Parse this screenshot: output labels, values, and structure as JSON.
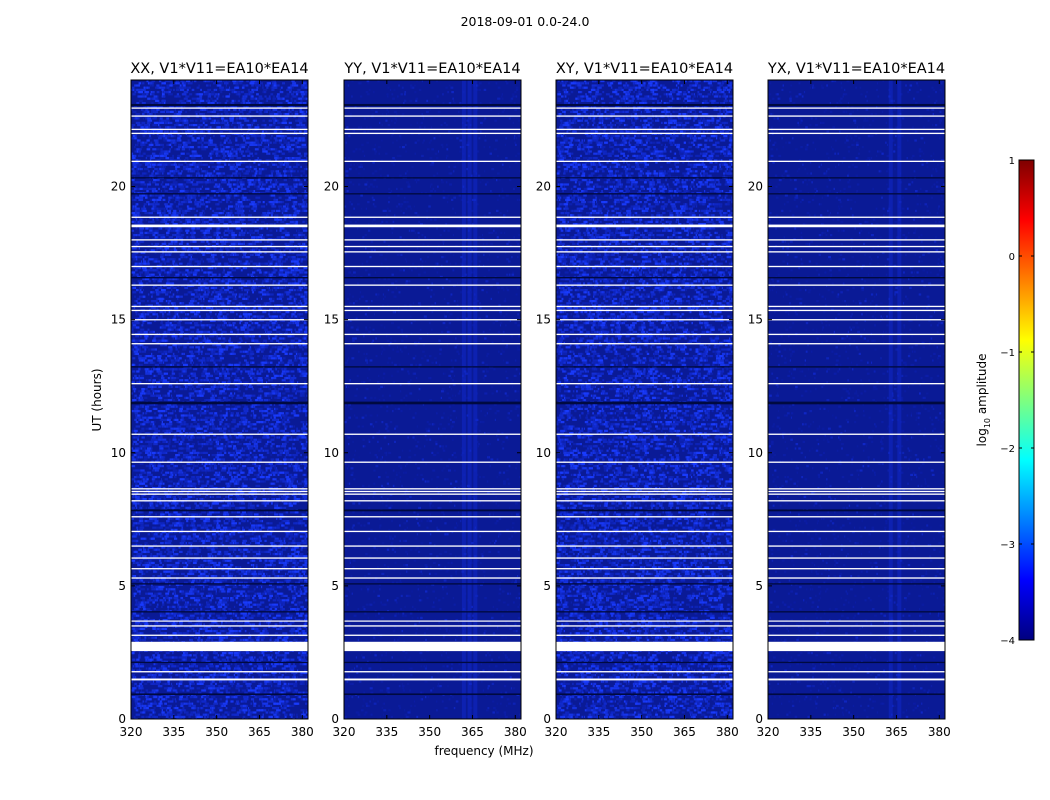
{
  "figure_title": "2018-09-01 0.0-24.0",
  "colors": {
    "field_base": "#0a1a96",
    "noise_bright": "#1a3cff",
    "noise_mid": "#1028c8",
    "band_white": "#ffffff",
    "band_dark": "#000a40"
  },
  "chart_data": {
    "type": "heatmap",
    "xlabel": "frequency (MHz)",
    "ylabel": "UT (hours)",
    "xlim": [
      320,
      382
    ],
    "ylim": [
      0,
      24
    ],
    "xticks": [
      320,
      335,
      350,
      365,
      380
    ],
    "xtick_labels": [
      "320",
      "335",
      "350",
      "365",
      "380"
    ],
    "yticks": [
      0,
      5,
      10,
      15,
      20
    ],
    "ytick_labels": [
      "0",
      "5",
      "10",
      "15",
      "20"
    ],
    "white_flag_bands_ut": [
      [
        2.55,
        2.9
      ],
      [
        1.45,
        1.52
      ],
      [
        1.75,
        1.8
      ],
      [
        3.12,
        3.17
      ],
      [
        3.47,
        3.52
      ],
      [
        3.67,
        3.7
      ],
      [
        5.27,
        5.32
      ],
      [
        5.62,
        5.67
      ],
      [
        6.02,
        6.07
      ],
      [
        6.47,
        6.52
      ],
      [
        7.02,
        7.07
      ],
      [
        7.57,
        7.62
      ],
      [
        8.17,
        8.22
      ],
      [
        8.42,
        8.47
      ],
      [
        8.52,
        8.57
      ],
      [
        8.62,
        8.67
      ],
      [
        9.62,
        9.67
      ],
      [
        10.67,
        10.72
      ],
      [
        12.57,
        12.62
      ],
      [
        14.07,
        14.12
      ],
      [
        14.42,
        14.47
      ],
      [
        14.97,
        15.02
      ],
      [
        15.32,
        15.37
      ],
      [
        15.47,
        15.52
      ],
      [
        16.27,
        16.32
      ],
      [
        16.97,
        17.02
      ],
      [
        17.52,
        17.57
      ],
      [
        17.72,
        17.77
      ],
      [
        17.97,
        18.02
      ],
      [
        18.47,
        18.57
      ],
      [
        18.82,
        18.87
      ],
      [
        20.92,
        20.97
      ],
      [
        21.97,
        22.02
      ],
      [
        22.12,
        22.17
      ],
      [
        22.62,
        22.67
      ],
      [
        22.92,
        22.97
      ]
    ],
    "dark_flag_bands_ut": [
      [
        0.9,
        0.96
      ],
      [
        2.1,
        2.15
      ],
      [
        4.0,
        4.05
      ],
      [
        5.05,
        5.1
      ],
      [
        7.8,
        7.87
      ],
      [
        11.82,
        11.92
      ],
      [
        13.2,
        13.25
      ],
      [
        16.55,
        16.6
      ],
      [
        19.7,
        19.75
      ],
      [
        20.3,
        20.35
      ],
      [
        23.02,
        23.1
      ]
    ],
    "panels": [
      {
        "title": "XX, V1*V11=EA10*EA14",
        "intensity": "high",
        "rfi_channels_mhz": []
      },
      {
        "title": "YY, V1*V11=EA10*EA14",
        "intensity": "low",
        "rfi_channels_mhz": [
          362,
          364,
          366
        ]
      },
      {
        "title": "XY, V1*V11=EA10*EA14",
        "intensity": "high",
        "rfi_channels_mhz": []
      },
      {
        "title": "YX, V1*V11=EA10*EA14",
        "intensity": "low",
        "rfi_channels_mhz": [
          363,
          366
        ]
      }
    ],
    "colorbar": {
      "label": "log",
      "label_sub": "10",
      "label_tail": " amplitude",
      "range": [
        -4,
        1
      ],
      "ticks": [
        1,
        0,
        -1,
        -2,
        -3,
        -4
      ],
      "tick_labels": [
        "1",
        "0",
        "−1",
        "−2",
        "−3",
        "−4"
      ],
      "colormap": "jet",
      "colormap_stops": [
        "#00007f",
        "#0000ff",
        "#007fff",
        "#00ffff",
        "#7fff7f",
        "#ffff00",
        "#ff7f00",
        "#ff0000",
        "#7f0000"
      ]
    }
  }
}
